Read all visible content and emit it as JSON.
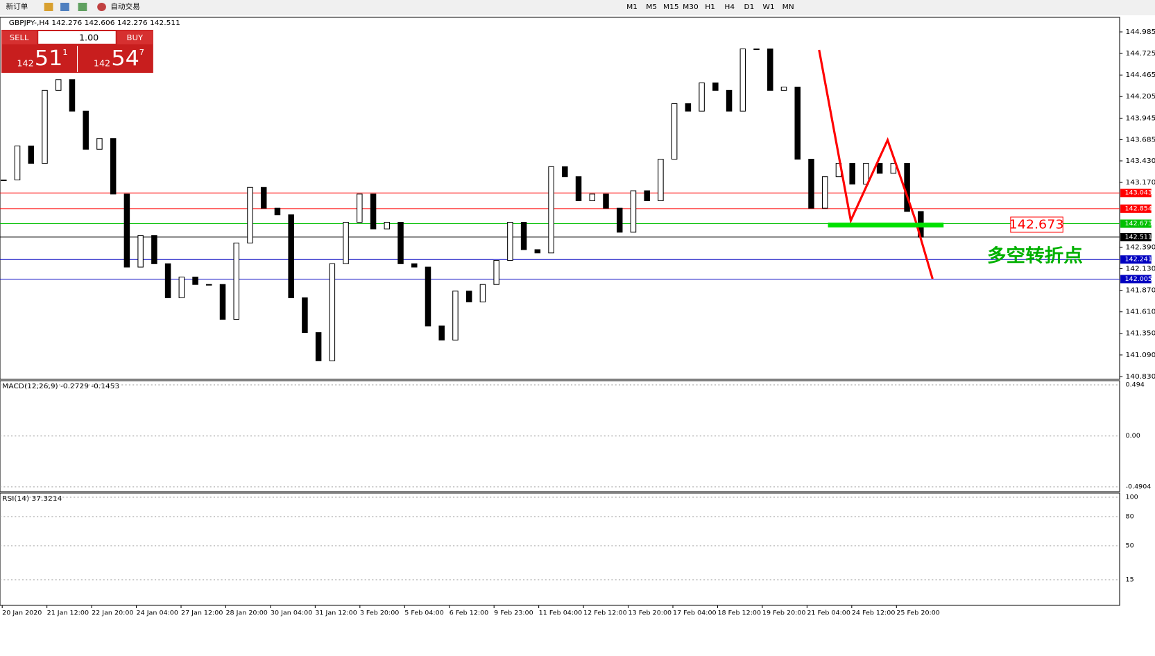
{
  "toolbar": {
    "new_order": "新订单",
    "auto_trading": "自动交易",
    "timeframes": [
      "M1",
      "M5",
      "M15",
      "M30",
      "H1",
      "H4",
      "D1",
      "W1",
      "MN"
    ]
  },
  "trade_panel": {
    "sell": "SELL",
    "buy": "BUY",
    "lots": "1.00",
    "bid": {
      "big": "142",
      "main": "51",
      "small": "1"
    },
    "ask": {
      "big": "142",
      "main": "54",
      "small": "7"
    }
  },
  "chart_data": {
    "type": "candlestick",
    "title": "GBPJPY-,H4 142.276 142.606 142.276 142.511",
    "close": [
      143.2,
      143.61,
      143.4,
      144.28,
      144.41,
      144.03,
      143.57,
      143.7,
      143.03,
      142.15,
      142.53,
      142.19,
      141.78,
      142.03,
      141.94,
      141.94,
      141.52,
      142.44,
      143.11,
      142.86,
      142.78,
      141.78,
      141.36,
      141.02,
      142.19,
      142.69,
      143.03,
      142.61,
      142.69,
      142.19,
      142.15,
      141.44,
      141.27,
      141.86,
      141.73,
      141.94,
      142.23,
      142.69,
      142.36,
      142.32,
      143.36,
      143.24,
      142.95,
      143.03,
      142.86,
      142.57,
      143.07,
      142.95,
      143.45,
      144.12,
      144.03,
      144.37,
      144.28,
      144.03,
      144.78,
      144.78,
      144.28,
      144.32,
      143.45,
      142.86,
      143.24,
      143.4,
      143.15,
      143.4,
      143.28,
      143.4,
      142.82,
      142.51
    ],
    "up_color": "#ffffff",
    "down_color": "#000000",
    "ylim": [
      140.83,
      144.985
    ],
    "yticks": [
      144.985,
      144.725,
      144.465,
      144.205,
      143.945,
      143.685,
      {
        "value": 143.43,
        "label": "143.430"
      },
      {
        "value": 143.17,
        "label": "143.170"
      },
      {
        "value": 142.39,
        "label": "142.390"
      },
      {
        "value": 142.13,
        "label": "142.130"
      },
      {
        "value": 141.87,
        "label": "141.870"
      },
      {
        "value": 141.61,
        "label": "141.610"
      },
      {
        "value": 141.35,
        "label": "141.350"
      },
      {
        "value": 141.09,
        "label": "141.090"
      },
      {
        "value": 140.83,
        "label": "140.830"
      }
    ],
    "hlines": [
      {
        "value": 143.043,
        "color": "#ff0000"
      },
      {
        "value": 142.854,
        "color": "#ff0000"
      },
      {
        "value": 142.673,
        "color": "#00c000"
      },
      {
        "value": 142.511,
        "color": "#000000"
      },
      {
        "value": 142.241,
        "color": "#0000c0"
      },
      {
        "value": 142.005,
        "color": "#0000c0"
      }
    ],
    "annotation": "多空转折点",
    "x_labels": [
      "20 Jan 2020",
      "21 Jan 12:00",
      "22 Jan 20:00",
      "24 Jan 04:00",
      "27 Jan 12:00",
      "28 Jan 20:00",
      "30 Jan 04:00",
      "31 Jan 12:00",
      "3 Feb 20:00",
      "5 Feb 04:00",
      "6 Feb 12:00",
      "9 Feb 23:00",
      "11 Feb 04:00",
      "12 Feb 12:00",
      "13 Feb 20:00",
      "17 Feb 04:00",
      "18 Feb 12:00",
      "19 Feb 20:00",
      "21 Feb 04:00",
      "24 Feb 12:00",
      "25 Feb 20:00"
    ]
  },
  "macd": {
    "label": "MACD(12,26,9) -0.2729 -0.1453",
    "ylim": [
      -0.4904,
      0.494
    ],
    "yticks": [
      0.494,
      {
        "value": 0,
        "label": "0.00"
      },
      -0.4904
    ]
  },
  "rsi": {
    "label": "RSI(14) 37.3214",
    "ylim": [
      0,
      100
    ],
    "yticks": [
      100,
      80,
      50,
      15
    ]
  }
}
